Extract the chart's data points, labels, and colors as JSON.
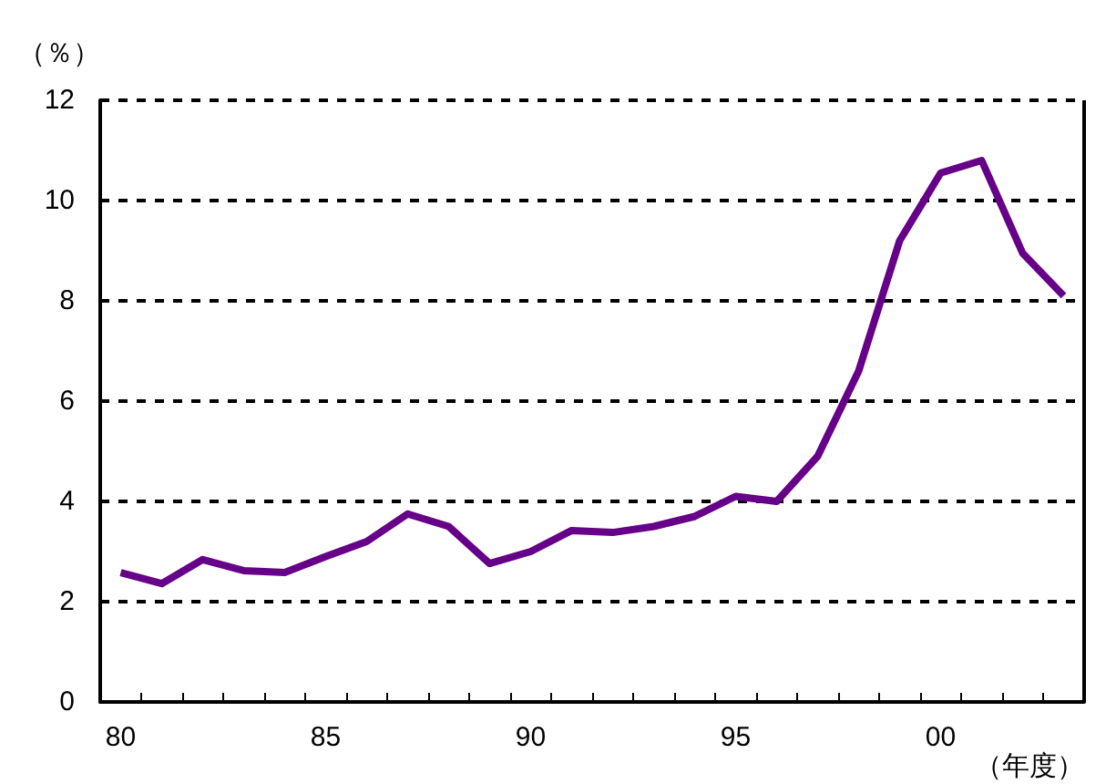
{
  "chart_data": {
    "type": "line",
    "xlabel": "（年度）",
    "ylabel": "（％）",
    "categories": [
      "80",
      null,
      null,
      null,
      null,
      "85",
      null,
      null,
      null,
      null,
      "90",
      null,
      null,
      null,
      null,
      "95",
      null,
      null,
      null,
      null,
      "00",
      null,
      null,
      null
    ],
    "series": [
      {
        "color": "#660088",
        "values": [
          2.58,
          2.36,
          2.84,
          2.62,
          2.58,
          2.9,
          3.2,
          3.75,
          3.5,
          2.76,
          3.0,
          3.42,
          3.38,
          3.5,
          3.7,
          4.1,
          4.0,
          4.9,
          6.6,
          9.2,
          10.55,
          10.8,
          8.95,
          8.1
        ]
      }
    ],
    "ylim": [
      0,
      12
    ],
    "yticks": [
      0,
      2,
      4,
      6,
      8,
      10,
      12
    ],
    "grid": "y",
    "marker": "none",
    "line_style": "solid"
  }
}
